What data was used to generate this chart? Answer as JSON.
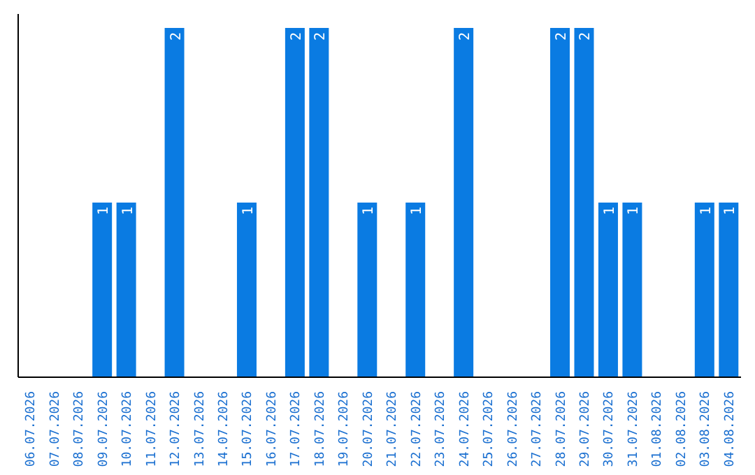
{
  "chart_data": {
    "type": "bar",
    "categories": [
      "06.07.2026",
      "07.07.2026",
      "08.07.2026",
      "09.07.2026",
      "10.07.2026",
      "11.07.2026",
      "12.07.2026",
      "13.07.2026",
      "14.07.2026",
      "15.07.2026",
      "16.07.2026",
      "17.07.2026",
      "18.07.2026",
      "19.07.2026",
      "20.07.2026",
      "21.07.2026",
      "22.07.2026",
      "23.07.2026",
      "24.07.2026",
      "25.07.2026",
      "26.07.2026",
      "27.07.2026",
      "28.07.2026",
      "29.07.2026",
      "30.07.2026",
      "31.07.2026",
      "01.08.2026",
      "02.08.2026",
      "03.08.2026",
      "04.08.2026"
    ],
    "values": [
      0,
      0,
      0,
      1,
      1,
      0,
      2,
      0,
      0,
      1,
      0,
      2,
      2,
      0,
      1,
      0,
      1,
      0,
      2,
      0,
      0,
      0,
      2,
      2,
      1,
      1,
      0,
      0,
      1,
      1
    ],
    "value_labels": [
      null,
      null,
      null,
      "1",
      "1",
      null,
      "2",
      null,
      null,
      "1",
      null,
      "2",
      "2",
      null,
      "1",
      null,
      "1",
      null,
      "2",
      null,
      null,
      null,
      "2",
      "2",
      "1",
      "1",
      null,
      null,
      "1",
      "1"
    ],
    "color": "#0a7be2",
    "ylim": [
      0,
      2.08
    ],
    "tick_labels": "x"
  }
}
